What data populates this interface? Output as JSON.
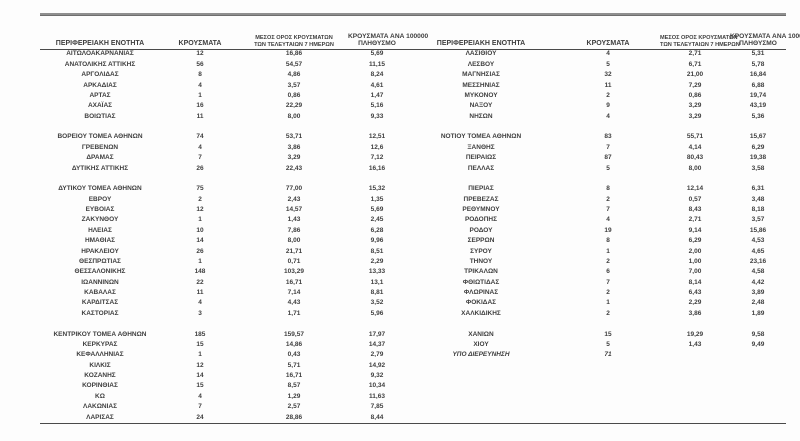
{
  "table": {
    "headers": {
      "region": "ΠΕΡΙΦΕΡΕΙΑΚΗ ΕΝΟΤΗΤΑ",
      "cases": "ΚΡΟΥΣΜΑΤΑ",
      "avg7_line1": "ΜΕΣΟΣ ΟΡΟΣ ΚΡΟΥΣΜΑΤΩΝ",
      "avg7_line2": "ΤΩΝ ΤΕΛΕΥΤΑΙΩΝ 7 ΗΜΕΡΩΝ",
      "per100k_line1": "ΚΡΟΥΣΜΑΤΑ ΑΝΑ 100000",
      "per100k_line2": "ΠΛΗΘΥΣΜΟ"
    },
    "colors": {
      "text": "#3e3e3e",
      "top_rule": "#8f8f8f",
      "dark_rule": "#4a4a4a"
    },
    "rows": [
      {
        "l": [
          "ΑΙΤΩΛΟΑΚΑΡΝΑΝΙΑΣ",
          "12",
          "16,86",
          "5,69"
        ],
        "r": [
          "ΛΑΣΙΘΙΟΥ",
          "4",
          "2,71",
          "5,31"
        ]
      },
      {
        "l": [
          "ΑΝΑΤΟΛΙΚΗΣ ΑΤΤΙΚΗΣ",
          "56",
          "54,57",
          "11,15"
        ],
        "r": [
          "ΛΕΣΒΟΥ",
          "5",
          "6,71",
          "5,78"
        ]
      },
      {
        "l": [
          "ΑΡΓΟΛΙΔΑΣ",
          "8",
          "4,86",
          "8,24"
        ],
        "r": [
          "ΜΑΓΝΗΣΙΑΣ",
          "32",
          "21,00",
          "16,84"
        ]
      },
      {
        "l": [
          "ΑΡΚΑΔΙΑΣ",
          "4",
          "3,57",
          "4,61"
        ],
        "r": [
          "ΜΕΣΣΗΝΙΑΣ",
          "11",
          "7,29",
          "6,88"
        ]
      },
      {
        "l": [
          "ΑΡΤΑΣ",
          "1",
          "0,86",
          "1,47"
        ],
        "r": [
          "ΜΥΚΟΝΟΥ",
          "2",
          "0,86",
          "19,74"
        ]
      },
      {
        "l": [
          "ΑΧΑΪΑΣ",
          "16",
          "22,29",
          "5,16"
        ],
        "r": [
          "ΝΑΞΟΥ",
          "9",
          "3,29",
          "43,19"
        ]
      },
      {
        "l": [
          "ΒΟΙΩΤΙΑΣ",
          "11",
          "8,00",
          "9,33"
        ],
        "r": [
          "ΝΗΣΩΝ",
          "4",
          "3,29",
          "5,36"
        ]
      },
      {
        "spacer": true
      },
      {
        "l": [
          "ΒΟΡΕΙΟΥ ΤΟΜΕΑ ΑΘΗΝΩΝ",
          "74",
          "53,71",
          "12,51"
        ],
        "r": [
          "ΝΟΤΙΟΥ ΤΟΜΕΑ ΑΘΗΝΩΝ",
          "83",
          "55,71",
          "15,67"
        ]
      },
      {
        "l": [
          "ΓΡΕΒΕΝΩΝ",
          "4",
          "3,86",
          "12,6"
        ],
        "r": [
          "ΞΑΝΘΗΣ",
          "7",
          "4,14",
          "6,29"
        ]
      },
      {
        "l": [
          "ΔΡΑΜΑΣ",
          "7",
          "3,29",
          "7,12"
        ],
        "r": [
          "ΠΕΙΡΑΙΩΣ",
          "87",
          "80,43",
          "19,38"
        ]
      },
      {
        "l": [
          "ΔΥΤΙΚΗΣ ΑΤΤΙΚΗΣ",
          "26",
          "22,43",
          "16,16"
        ],
        "r": [
          "ΠΕΛΛΑΣ",
          "5",
          "8,00",
          "3,58"
        ]
      },
      {
        "spacer": true
      },
      {
        "l": [
          "ΔΥΤΙΚΟΥ ΤΟΜΕΑ ΑΘΗΝΩΝ",
          "75",
          "77,00",
          "15,32"
        ],
        "r": [
          "ΠΙΕΡΙΑΣ",
          "8",
          "12,14",
          "6,31"
        ]
      },
      {
        "l": [
          "ΕΒΡΟΥ",
          "2",
          "2,43",
          "1,35"
        ],
        "r": [
          "ΠΡΕΒΕΖΑΣ",
          "2",
          "0,57",
          "3,48"
        ]
      },
      {
        "l": [
          "ΕΥΒΟΙΑΣ",
          "12",
          "14,57",
          "5,69"
        ],
        "r": [
          "ΡΕΘΥΜΝΟΥ",
          "7",
          "8,43",
          "8,18"
        ]
      },
      {
        "l": [
          "ΖΑΚΥΝΘΟΥ",
          "1",
          "1,43",
          "2,45"
        ],
        "r": [
          "ΡΟΔΟΠΗΣ",
          "4",
          "2,71",
          "3,57"
        ]
      },
      {
        "l": [
          "ΗΛΕΙΑΣ",
          "10",
          "7,86",
          "6,28"
        ],
        "r": [
          "ΡΟΔΟΥ",
          "19",
          "9,14",
          "15,86"
        ]
      },
      {
        "l": [
          "ΗΜΑΘΙΑΣ",
          "14",
          "8,00",
          "9,96"
        ],
        "r": [
          "ΣΕΡΡΩΝ",
          "8",
          "6,29",
          "4,53"
        ]
      },
      {
        "l": [
          "ΗΡΑΚΛΕΙΟΥ",
          "26",
          "21,71",
          "8,51"
        ],
        "r": [
          "ΣΥΡΟΥ",
          "1",
          "2,00",
          "4,65"
        ]
      },
      {
        "l": [
          "ΘΕΣΠΡΩΤΙΑΣ",
          "1",
          "0,71",
          "2,29"
        ],
        "r": [
          "ΤΗΝΟΥ",
          "2",
          "1,00",
          "23,16"
        ]
      },
      {
        "l": [
          "ΘΕΣΣΑΛΟΝΙΚΗΣ",
          "148",
          "103,29",
          "13,33"
        ],
        "r": [
          "ΤΡΙΚΑΛΩΝ",
          "6",
          "7,00",
          "4,58"
        ]
      },
      {
        "l": [
          "ΙΩΑΝΝΙΝΩΝ",
          "22",
          "16,71",
          "13,1"
        ],
        "r": [
          "ΦΘΙΩΤΙΔΑΣ",
          "7",
          "8,14",
          "4,42"
        ]
      },
      {
        "l": [
          "ΚΑΒΑΛΑΣ",
          "11",
          "7,14",
          "8,81"
        ],
        "r": [
          "ΦΛΩΡΙΝΑΣ",
          "2",
          "6,43",
          "3,89"
        ]
      },
      {
        "l": [
          "ΚΑΡΔΙΤΣΑΣ",
          "4",
          "4,43",
          "3,52"
        ],
        "r": [
          "ΦΟΚΙΔΑΣ",
          "1",
          "2,29",
          "2,48"
        ]
      },
      {
        "l": [
          "ΚΑΣΤΟΡΙΑΣ",
          "3",
          "1,71",
          "5,96"
        ],
        "r": [
          "ΧΑΛΚΙΔΙΚΗΣ",
          "2",
          "3,86",
          "1,89"
        ]
      },
      {
        "spacer": true
      },
      {
        "l": [
          "ΚΕΝΤΡΙΚΟΥ ΤΟΜΕΑ ΑΘΗΝΩΝ",
          "185",
          "159,57",
          "17,97"
        ],
        "r": [
          "ΧΑΝΙΩΝ",
          "15",
          "19,29",
          "9,58"
        ]
      },
      {
        "l": [
          "ΚΕΡΚΥΡΑΣ",
          "15",
          "14,86",
          "14,37"
        ],
        "r": [
          "ΧΙΟΥ",
          "5",
          "1,43",
          "9,49"
        ]
      },
      {
        "l": [
          "ΚΕΦΑΛΛΗΝΙΑΣ",
          "1",
          "0,43",
          "2,79"
        ],
        "r": [
          "ΥΠΟ ΔΙΕΡΕΥΝΗΣΗ",
          "71",
          "",
          ""
        ],
        "r_italic": true
      },
      {
        "l": [
          "ΚΙΛΚΙΣ",
          "12",
          "5,71",
          "14,92"
        ],
        "r": [
          "",
          "",
          "",
          ""
        ]
      },
      {
        "l": [
          "ΚΟΖΑΝΗΣ",
          "14",
          "16,71",
          "9,32"
        ],
        "r": [
          "",
          "",
          "",
          ""
        ]
      },
      {
        "l": [
          "ΚΟΡΙΝΘΙΑΣ",
          "15",
          "8,57",
          "10,34"
        ],
        "r": [
          "",
          "",
          "",
          ""
        ]
      },
      {
        "l": [
          "ΚΩ",
          "4",
          "1,29",
          "11,63"
        ],
        "r": [
          "",
          "",
          "",
          ""
        ]
      },
      {
        "l": [
          "ΛΑΚΩΝΙΑΣ",
          "7",
          "2,57",
          "7,85"
        ],
        "r": [
          "",
          "",
          "",
          ""
        ]
      },
      {
        "l": [
          "ΛΑΡΙΣΑΣ",
          "24",
          "28,86",
          "8,44"
        ],
        "r": [
          "",
          "",
          "",
          ""
        ]
      }
    ]
  }
}
